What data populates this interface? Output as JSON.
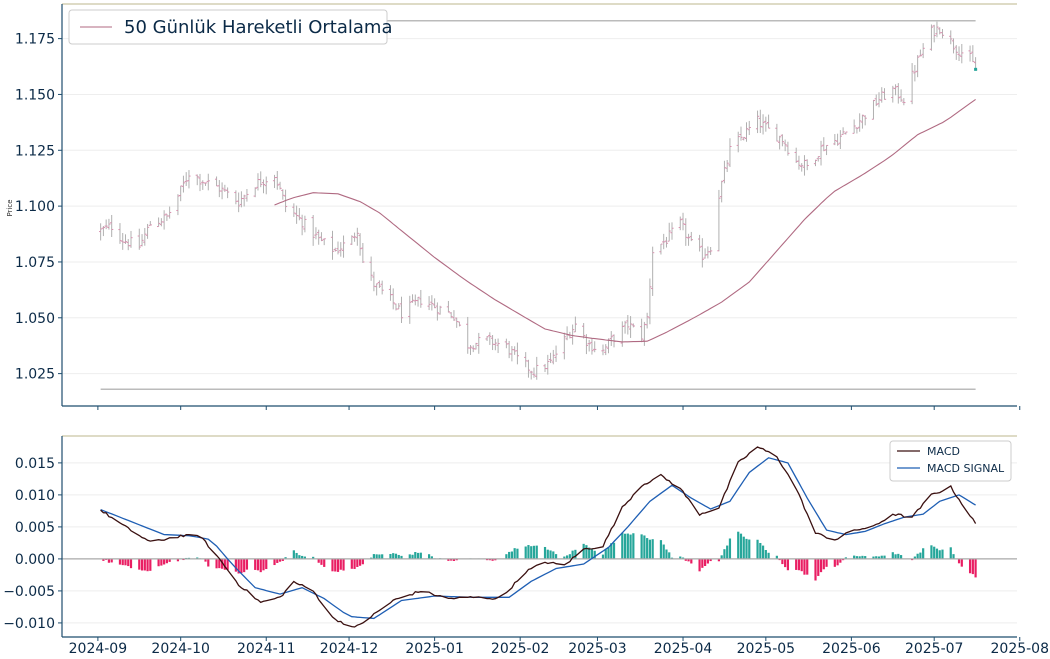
{
  "chart_data": [
    {
      "type": "ohlc",
      "ylabel": "Price",
      "ylim": [
        1.0105,
        1.1905
      ],
      "yticks": [
        "1.025",
        "1.050",
        "1.075",
        "1.100",
        "1.125",
        "1.150",
        "1.175"
      ],
      "legend": {
        "placement": "top-left",
        "entries": [
          "50 Günlük Hareketli Ortalama"
        ]
      },
      "reference_lines": [
        1.183,
        1.018
      ],
      "grid": "horizontal",
      "colors": {
        "bars": "#b0b0b0",
        "bar_marks": "#d98fae",
        "moving_average": "#b06a82",
        "reference": "#bbbbbb",
        "axes": "#1f4e6e",
        "top_border": "#c9c5a3"
      },
      "price_waypoints": [
        [
          "2024-09-02",
          1.089
        ],
        [
          "2024-09-06",
          1.091
        ],
        [
          "2024-09-10",
          1.085
        ],
        [
          "2024-09-16",
          1.082
        ],
        [
          "2024-09-20",
          1.092
        ],
        [
          "2024-09-26",
          1.095
        ],
        [
          "2024-10-01",
          1.107
        ],
        [
          "2024-10-04",
          1.115
        ],
        [
          "2024-10-08",
          1.112
        ],
        [
          "2024-10-15",
          1.108
        ],
        [
          "2024-10-22",
          1.102
        ],
        [
          "2024-10-28",
          1.11
        ],
        [
          "2024-11-04",
          1.114
        ],
        [
          "2024-11-08",
          1.1
        ],
        [
          "2024-11-14",
          1.093
        ],
        [
          "2024-11-20",
          1.085
        ],
        [
          "2024-11-26",
          1.08
        ],
        [
          "2024-12-02",
          1.085
        ],
        [
          "2024-12-04",
          1.09
        ],
        [
          "2024-12-06",
          1.075
        ],
        [
          "2024-12-10",
          1.065
        ],
        [
          "2024-12-16",
          1.058
        ],
        [
          "2024-12-20",
          1.052
        ],
        [
          "2024-12-27",
          1.058
        ],
        [
          "2025-01-03",
          1.054
        ],
        [
          "2025-01-08",
          1.051
        ],
        [
          "2025-01-13",
          1.038
        ],
        [
          "2025-01-20",
          1.04
        ],
        [
          "2025-01-27",
          1.037
        ],
        [
          "2025-02-01",
          1.03
        ],
        [
          "2025-02-06",
          1.026
        ],
        [
          "2025-02-12",
          1.03
        ],
        [
          "2025-02-18",
          1.042
        ],
        [
          "2025-02-21",
          1.047
        ],
        [
          "2025-02-26",
          1.038
        ],
        [
          "2025-03-03",
          1.035
        ],
        [
          "2025-03-06",
          1.04
        ],
        [
          "2025-03-12",
          1.047
        ],
        [
          "2025-03-17",
          1.042
        ],
        [
          "2025-03-19",
          1.05
        ],
        [
          "2025-03-21",
          1.08
        ],
        [
          "2025-03-26",
          1.085
        ],
        [
          "2025-03-31",
          1.092
        ],
        [
          "2025-04-04",
          1.083
        ],
        [
          "2025-04-08",
          1.078
        ],
        [
          "2025-04-11",
          1.082
        ],
        [
          "2025-04-14",
          1.105
        ],
        [
          "2025-04-18",
          1.125
        ],
        [
          "2025-04-23",
          1.132
        ],
        [
          "2025-04-28",
          1.138
        ],
        [
          "2025-05-02",
          1.134
        ],
        [
          "2025-05-07",
          1.13
        ],
        [
          "2025-05-12",
          1.12
        ],
        [
          "2025-05-16",
          1.118
        ],
        [
          "2025-05-21",
          1.126
        ],
        [
          "2025-05-27",
          1.13
        ],
        [
          "2025-06-02",
          1.136
        ],
        [
          "2025-06-06",
          1.141
        ],
        [
          "2025-06-11",
          1.148
        ],
        [
          "2025-06-16",
          1.152
        ],
        [
          "2025-06-20",
          1.148
        ],
        [
          "2025-06-25",
          1.165
        ],
        [
          "2025-06-30",
          1.178
        ],
        [
          "2025-07-03",
          1.18
        ],
        [
          "2025-07-08",
          1.172
        ],
        [
          "2025-07-14",
          1.166
        ],
        [
          "2025-07-16",
          1.161
        ]
      ],
      "moving_average_waypoints": [
        [
          "2024-11-04",
          1.1005
        ],
        [
          "2024-11-10",
          1.1035
        ],
        [
          "2024-11-18",
          1.106
        ],
        [
          "2024-11-27",
          1.1055
        ],
        [
          "2024-12-05",
          1.102
        ],
        [
          "2024-12-12",
          1.097
        ],
        [
          "2024-12-20",
          1.089
        ],
        [
          "2025-01-01",
          1.077
        ],
        [
          "2025-01-12",
          1.067
        ],
        [
          "2025-01-23",
          1.058
        ],
        [
          "2025-02-03",
          1.05
        ],
        [
          "2025-02-10",
          1.045
        ],
        [
          "2025-02-20",
          1.042
        ],
        [
          "2025-03-01",
          1.0405
        ],
        [
          "2025-03-10",
          1.0392
        ],
        [
          "2025-03-19",
          1.0395
        ],
        [
          "2025-03-26",
          1.0435
        ],
        [
          "2025-04-05",
          1.05
        ],
        [
          "2025-04-15",
          1.057
        ],
        [
          "2025-04-25",
          1.066
        ],
        [
          "2025-05-05",
          1.08
        ],
        [
          "2025-05-15",
          1.094
        ],
        [
          "2025-05-25",
          1.106
        ],
        [
          "2025-06-05",
          1.114
        ],
        [
          "2025-06-15",
          1.122
        ],
        [
          "2025-06-25",
          1.132
        ],
        [
          "2025-07-05",
          1.138
        ],
        [
          "2025-07-16",
          1.1478
        ]
      ]
    },
    {
      "type": "line+bar",
      "ylim": [
        -0.0122,
        0.0192
      ],
      "yticks": [
        "−0.010",
        "−0.005",
        "0.000",
        "0.005",
        "0.010",
        "0.015"
      ],
      "legend": {
        "placement": "top-right",
        "entries": [
          "MACD",
          "MACD SIGNAL"
        ]
      },
      "grid": "horizontal",
      "colors": {
        "macd": "#3a1010",
        "signal": "#1f5fb4",
        "hist_positive": "#26a69a",
        "hist_negative": "#e91e63",
        "zero_line": "#aaaaaa"
      },
      "macd_waypoints": [
        [
          "2024-09-02",
          0.0076
        ],
        [
          "2024-09-11",
          0.005
        ],
        [
          "2024-09-20",
          0.0026
        ],
        [
          "2024-10-01",
          0.0036
        ],
        [
          "2024-10-08",
          0.0036
        ],
        [
          "2024-10-15",
          0.0
        ],
        [
          "2024-10-22",
          -0.004
        ],
        [
          "2024-10-30",
          -0.0068
        ],
        [
          "2024-11-06",
          -0.006
        ],
        [
          "2024-11-11",
          -0.0036
        ],
        [
          "2024-11-18",
          -0.005
        ],
        [
          "2024-11-25",
          -0.0092
        ],
        [
          "2024-12-03",
          -0.0108
        ],
        [
          "2024-12-09",
          -0.009
        ],
        [
          "2024-12-17",
          -0.0065
        ],
        [
          "2024-12-27",
          -0.005
        ],
        [
          "2025-01-06",
          -0.0062
        ],
        [
          "2025-01-15",
          -0.006
        ],
        [
          "2025-01-25",
          -0.0062
        ],
        [
          "2025-02-03",
          -0.002
        ],
        [
          "2025-02-10",
          -0.0005
        ],
        [
          "2025-02-17",
          -0.001
        ],
        [
          "2025-02-24",
          0.0015
        ],
        [
          "2025-03-03",
          0.002
        ],
        [
          "2025-03-10",
          0.008
        ],
        [
          "2025-03-17",
          0.0115
        ],
        [
          "2025-03-24",
          0.013
        ],
        [
          "2025-03-31",
          0.011
        ],
        [
          "2025-04-07",
          0.007
        ],
        [
          "2025-04-14",
          0.008
        ],
        [
          "2025-04-21",
          0.015
        ],
        [
          "2025-04-28",
          0.0175
        ],
        [
          "2025-05-05",
          0.016
        ],
        [
          "2025-05-12",
          0.011
        ],
        [
          "2025-05-19",
          0.004
        ],
        [
          "2025-05-26",
          0.003
        ],
        [
          "2025-06-02",
          0.0045
        ],
        [
          "2025-06-09",
          0.005
        ],
        [
          "2025-06-16",
          0.007
        ],
        [
          "2025-06-23",
          0.0065
        ],
        [
          "2025-06-30",
          0.01
        ],
        [
          "2025-07-07",
          0.0112
        ],
        [
          "2025-07-16",
          0.0055
        ]
      ],
      "signal_waypoints": [
        [
          "2024-09-02",
          0.0077
        ],
        [
          "2024-09-15",
          0.0055
        ],
        [
          "2024-09-25",
          0.0038
        ],
        [
          "2024-10-05",
          0.0036
        ],
        [
          "2024-10-12",
          0.003
        ],
        [
          "2024-10-20",
          -0.001
        ],
        [
          "2024-10-28",
          -0.0045
        ],
        [
          "2024-11-06",
          -0.0055
        ],
        [
          "2024-11-14",
          -0.0045
        ],
        [
          "2024-11-22",
          -0.0062
        ],
        [
          "2024-12-01",
          -0.009
        ],
        [
          "2024-12-10",
          -0.0093
        ],
        [
          "2024-12-20",
          -0.0065
        ],
        [
          "2025-01-01",
          -0.0058
        ],
        [
          "2025-01-15",
          -0.006
        ],
        [
          "2025-01-28",
          -0.006
        ],
        [
          "2025-02-05",
          -0.0035
        ],
        [
          "2025-02-14",
          -0.0015
        ],
        [
          "2025-02-24",
          -0.0008
        ],
        [
          "2025-03-05",
          0.0018
        ],
        [
          "2025-03-12",
          0.005
        ],
        [
          "2025-03-20",
          0.009
        ],
        [
          "2025-03-28",
          0.0115
        ],
        [
          "2025-04-04",
          0.0095
        ],
        [
          "2025-04-11",
          0.0078
        ],
        [
          "2025-04-18",
          0.009
        ],
        [
          "2025-04-25",
          0.0135
        ],
        [
          "2025-05-02",
          0.0158
        ],
        [
          "2025-05-09",
          0.015
        ],
        [
          "2025-05-16",
          0.0095
        ],
        [
          "2025-05-23",
          0.0045
        ],
        [
          "2025-05-30",
          0.0038
        ],
        [
          "2025-06-06",
          0.0043
        ],
        [
          "2025-06-13",
          0.0055
        ],
        [
          "2025-06-20",
          0.0065
        ],
        [
          "2025-06-27",
          0.007
        ],
        [
          "2025-07-03",
          0.009
        ],
        [
          "2025-07-10",
          0.01
        ],
        [
          "2025-07-16",
          0.0084
        ]
      ]
    }
  ],
  "x_axis": {
    "type": "date",
    "range": [
      "2024-08-19",
      "2025-07-31"
    ],
    "ticks": [
      [
        "2024-09-01",
        "2024-09"
      ],
      [
        "2024-10-01",
        "2024-10"
      ],
      [
        "2024-11-01",
        "2024-11"
      ],
      [
        "2024-12-01",
        "2024-12"
      ],
      [
        "2025-01-01",
        "2025-01"
      ],
      [
        "2025-02-01",
        "2025-02"
      ],
      [
        "2025-03-01",
        "2025-03"
      ],
      [
        "2025-04-01",
        "2025-04"
      ],
      [
        "2025-05-01",
        "2025-05"
      ],
      [
        "2025-06-01",
        "2025-06"
      ],
      [
        "2025-07-01",
        "2025-07"
      ],
      [
        "2025-08-01",
        "2025-08"
      ]
    ],
    "data_start": "2024-09-02",
    "data_end": "2025-07-16"
  }
}
